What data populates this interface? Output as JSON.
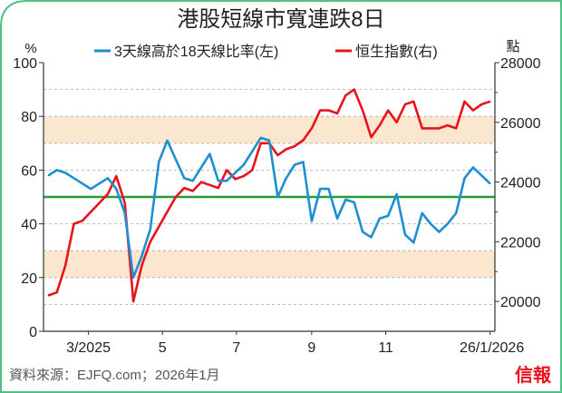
{
  "title": "港股短線市寬連跌8日",
  "source": "資料來源：EJFQ.com；2026年1月",
  "logo": "信報",
  "colors": {
    "blue": "#1e8fd0",
    "red": "#e8141c",
    "green": "#1f9e3a",
    "band": "#fbe7cf",
    "frame": "#4cc285"
  },
  "chart_data": {
    "type": "line",
    "left_unit": "%",
    "right_unit": "點",
    "ylim_left": [
      0,
      100
    ],
    "ylim_right": [
      19000,
      28000
    ],
    "left_ticks": [
      "0",
      "20",
      "40",
      "60",
      "80",
      "100"
    ],
    "right_ticks": [
      "20000",
      "22000",
      "24000",
      "26000",
      "28000"
    ],
    "x_ticks": [
      {
        "date": "2025-03-01",
        "label": "3/2025"
      },
      {
        "date": "2025-05-01",
        "label": "5"
      },
      {
        "date": "2025-07-01",
        "label": "7"
      },
      {
        "date": "2025-09-01",
        "label": "9"
      },
      {
        "date": "2025-11-01",
        "label": "11"
      },
      {
        "date": "2026-01-26",
        "label": "26/1/2026"
      }
    ],
    "xlim": [
      "2025-01-23",
      "2026-01-30"
    ],
    "bands_left": [
      [
        20,
        30
      ],
      [
        70,
        80
      ]
    ],
    "reference_line_left": 50,
    "grid": "dashed horizontal every 10%",
    "legend_position": "top",
    "x": [
      "2025-01-27",
      "2025-02-03",
      "2025-02-10",
      "2025-02-17",
      "2025-02-24",
      "2025-03-03",
      "2025-03-10",
      "2025-03-17",
      "2025-03-24",
      "2025-03-31",
      "2025-04-07",
      "2025-04-14",
      "2025-04-21",
      "2025-04-28",
      "2025-05-05",
      "2025-05-12",
      "2025-05-19",
      "2025-05-26",
      "2025-06-02",
      "2025-06-09",
      "2025-06-16",
      "2025-06-23",
      "2025-06-30",
      "2025-07-07",
      "2025-07-14",
      "2025-07-21",
      "2025-07-28",
      "2025-08-04",
      "2025-08-11",
      "2025-08-18",
      "2025-08-25",
      "2025-09-01",
      "2025-09-08",
      "2025-09-15",
      "2025-09-22",
      "2025-09-29",
      "2025-10-06",
      "2025-10-13",
      "2025-10-20",
      "2025-10-27",
      "2025-11-03",
      "2025-11-10",
      "2025-11-17",
      "2025-11-24",
      "2025-12-01",
      "2025-12-08",
      "2025-12-15",
      "2025-12-22",
      "2025-12-29",
      "2026-01-05",
      "2026-01-12",
      "2026-01-19",
      "2026-01-26"
    ],
    "series": [
      {
        "name": "3天線高於18天線比率(左)",
        "axis": "left",
        "color": "#1e8fd0",
        "values": [
          58,
          60,
          59,
          57,
          55,
          53,
          55,
          57,
          53,
          44,
          20,
          28,
          38,
          63,
          71,
          64,
          57,
          56,
          61,
          66,
          56,
          56,
          59,
          62,
          67,
          72,
          71,
          50,
          57,
          62,
          63,
          41,
          53,
          53,
          42,
          49,
          48,
          37,
          35,
          42,
          43,
          51,
          36,
          33,
          44,
          40,
          37,
          40,
          44,
          57,
          61,
          58,
          55
        ]
      },
      {
        "name": "恒生指數(右)",
        "axis": "right",
        "color": "#e8141c",
        "values": [
          20200,
          20300,
          21200,
          22600,
          22700,
          23000,
          23300,
          23600,
          24200,
          23300,
          20000,
          21200,
          22000,
          22500,
          23000,
          23500,
          23800,
          23700,
          24000,
          23900,
          23800,
          24400,
          24100,
          24200,
          24400,
          25300,
          25300,
          24900,
          25100,
          25200,
          25400,
          25800,
          26400,
          26400,
          26300,
          26900,
          27100,
          26400,
          25500,
          25900,
          26400,
          26000,
          26600,
          26700,
          25800,
          25800,
          25800,
          25900,
          25800,
          26700,
          26400,
          26600,
          26700
        ]
      }
    ]
  }
}
